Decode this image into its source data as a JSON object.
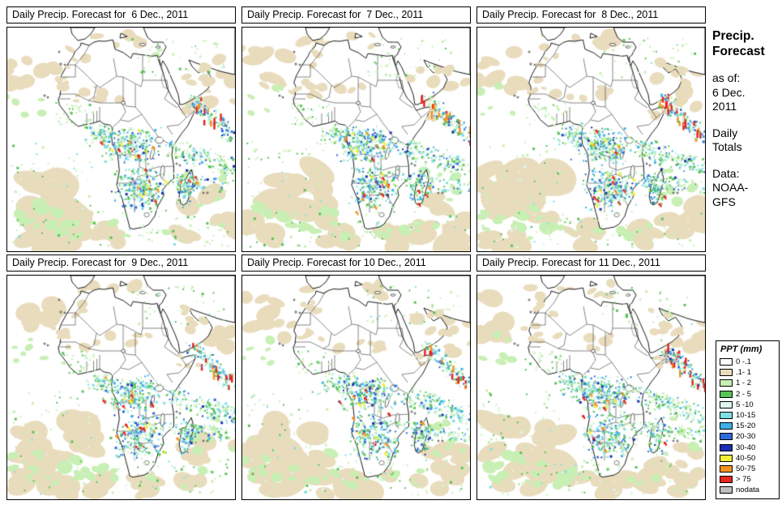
{
  "panels": [
    {
      "title": "Daily Precip. Forecast for  6 Dec., 2011"
    },
    {
      "title": "Daily Precip. Forecast for  7 Dec., 2011"
    },
    {
      "title": "Daily Precip. Forecast for  8 Dec., 2011"
    },
    {
      "title": "Daily Precip. Forecast for  9 Dec., 2011"
    },
    {
      "title": "Daily Precip. Forecast for 10 Dec., 2011"
    },
    {
      "title": "Daily Precip. Forecast for 11 Dec., 2011"
    }
  ],
  "sidebar": {
    "title": [
      "Precip.",
      "Forecast"
    ],
    "as_of_label": "as of:",
    "as_of_date": [
      "6 Dec.",
      "2011"
    ],
    "totals": [
      "Daily",
      "Totals"
    ],
    "source_label": "Data:",
    "source": [
      "NOAA-",
      "GFS"
    ]
  },
  "legend": {
    "title": "PPT (mm)",
    "entries": [
      {
        "label": "0 -.1",
        "color": "#FFFFFF"
      },
      {
        "label": ".1- 1",
        "color": "#E9DCBD"
      },
      {
        "label": "1 - 2",
        "color": "#C8EFB4"
      },
      {
        "label": "2 - 5",
        "color": "#58C357"
      },
      {
        "label": "5 -10",
        "color": "#DFF5EF"
      },
      {
        "label": "10-15",
        "color": "#7FDFE1"
      },
      {
        "label": "15-20",
        "color": "#3FB0E8"
      },
      {
        "label": "20-30",
        "color": "#2F6BD9"
      },
      {
        "label": "30-40",
        "color": "#1C2FB5"
      },
      {
        "label": "40-50",
        "color": "#F5F03A"
      },
      {
        "label": "50-75",
        "color": "#F59120"
      },
      {
        "label": "> 75",
        "color": "#E5261C"
      },
      {
        "label": "nodata",
        "color": "#C0C0C0"
      }
    ]
  }
}
